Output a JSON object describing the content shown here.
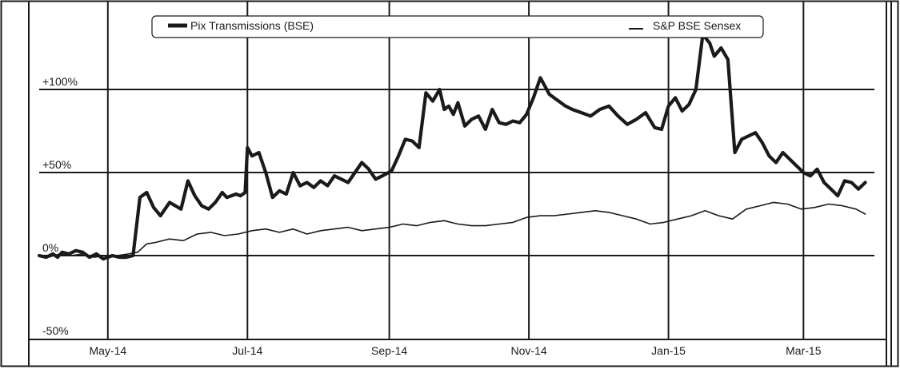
{
  "chart_data": {
    "type": "line",
    "title": "",
    "xlabel": "",
    "ylabel": "",
    "y_unit": "%",
    "ylim": [
      -50,
      135
    ],
    "xlim": [
      "2014-04-01",
      "2015-04-01"
    ],
    "grid": true,
    "legend_position": "top",
    "x_tick_labels": [
      "May-14",
      "Jul-14",
      "Sep-14",
      "Nov-14",
      "Jan-15",
      "Mar-15"
    ],
    "x_tick_dates": [
      "2014-05-01",
      "2014-07-01",
      "2014-09-01",
      "2014-11-01",
      "2015-01-01",
      "2015-03-01"
    ],
    "y_tick_labels": [
      "+100%",
      "+50%",
      "0%",
      "-50%"
    ],
    "y_tick_values": [
      100,
      50,
      0,
      -50
    ],
    "series": [
      {
        "name": "Pix Transmissions (BSE)",
        "color": "#1a1a1a",
        "line_style": "thick",
        "x": [
          "2014-04-01",
          "2014-04-04",
          "2014-04-07",
          "2014-04-09",
          "2014-04-11",
          "2014-04-14",
          "2014-04-17",
          "2014-04-20",
          "2014-04-23",
          "2014-04-26",
          "2014-04-29",
          "2014-05-03",
          "2014-05-06",
          "2014-05-09",
          "2014-05-12",
          "2014-05-15",
          "2014-05-18",
          "2014-05-21",
          "2014-05-24",
          "2014-05-28",
          "2014-06-02",
          "2014-06-05",
          "2014-06-08",
          "2014-06-11",
          "2014-06-14",
          "2014-06-17",
          "2014-06-20",
          "2014-06-22",
          "2014-06-24",
          "2014-06-26",
          "2014-06-28",
          "2014-06-30",
          "2014-07-01",
          "2014-07-03",
          "2014-07-06",
          "2014-07-09",
          "2014-07-12",
          "2014-07-15",
          "2014-07-18",
          "2014-07-21",
          "2014-07-24",
          "2014-07-27",
          "2014-07-30",
          "2014-08-02",
          "2014-08-05",
          "2014-08-08",
          "2014-08-11",
          "2014-08-14",
          "2014-08-17",
          "2014-08-20",
          "2014-08-23",
          "2014-08-26",
          "2014-08-29",
          "2014-09-02",
          "2014-09-05",
          "2014-09-08",
          "2014-09-11",
          "2014-09-14",
          "2014-09-17",
          "2014-09-20",
          "2014-09-23",
          "2014-09-25",
          "2014-09-27",
          "2014-09-29",
          "2014-10-01",
          "2014-10-04",
          "2014-10-07",
          "2014-10-10",
          "2014-10-13",
          "2014-10-16",
          "2014-10-19",
          "2014-10-22",
          "2014-10-25",
          "2014-10-28",
          "2014-10-31",
          "2014-11-03",
          "2014-11-06",
          "2014-11-10",
          "2014-11-14",
          "2014-11-17",
          "2014-11-20",
          "2014-11-24",
          "2014-11-28",
          "2014-12-02",
          "2014-12-06",
          "2014-12-10",
          "2014-12-14",
          "2014-12-18",
          "2014-12-22",
          "2014-12-26",
          "2014-12-29",
          "2015-01-01",
          "2015-01-04",
          "2015-01-07",
          "2015-01-10",
          "2015-01-13",
          "2015-01-16",
          "2015-01-19",
          "2015-01-21",
          "2015-01-24",
          "2015-01-27",
          "2015-01-30",
          "2015-02-02",
          "2015-02-05",
          "2015-02-08",
          "2015-02-11",
          "2015-02-14",
          "2015-02-17",
          "2015-02-20",
          "2015-02-23",
          "2015-02-26",
          "2015-03-01",
          "2015-03-04",
          "2015-03-07",
          "2015-03-10",
          "2015-03-13",
          "2015-03-16",
          "2015-03-19",
          "2015-03-22",
          "2015-03-25",
          "2015-03-28"
        ],
        "values": [
          0,
          -1,
          1,
          -1,
          2,
          1,
          3,
          2,
          -1,
          1,
          -2,
          0,
          -1,
          -1,
          0,
          35,
          38,
          29,
          24,
          32,
          28,
          45,
          36,
          30,
          28,
          32,
          38,
          35,
          36,
          37,
          36,
          38,
          65,
          60,
          62,
          50,
          35,
          39,
          37,
          50,
          42,
          44,
          41,
          45,
          42,
          48,
          46,
          44,
          50,
          56,
          52,
          46,
          48,
          51,
          60,
          70,
          69,
          65,
          98,
          93,
          100,
          88,
          90,
          85,
          92,
          78,
          82,
          84,
          76,
          88,
          80,
          79,
          81,
          80,
          85,
          95,
          107,
          97,
          93,
          90,
          88,
          86,
          84,
          88,
          90,
          84,
          79,
          82,
          86,
          77,
          76,
          90,
          95,
          87,
          91,
          100,
          133,
          128,
          120,
          125,
          118,
          62,
          70,
          72,
          74,
          68,
          60,
          56,
          62,
          58,
          54,
          50,
          48,
          52,
          44,
          40,
          36,
          45,
          44,
          40,
          44
        ]
      },
      {
        "name": "S&P BSE Sensex",
        "color": "#1a1a1a",
        "line_style": "thin",
        "x": [
          "2014-04-01",
          "2014-04-05",
          "2014-04-10",
          "2014-04-15",
          "2014-04-20",
          "2014-04-25",
          "2014-04-30",
          "2014-05-05",
          "2014-05-10",
          "2014-05-14",
          "2014-05-18",
          "2014-05-22",
          "2014-05-28",
          "2014-06-03",
          "2014-06-09",
          "2014-06-15",
          "2014-06-21",
          "2014-06-27",
          "2014-07-03",
          "2014-07-09",
          "2014-07-15",
          "2014-07-21",
          "2014-07-27",
          "2014-08-02",
          "2014-08-08",
          "2014-08-14",
          "2014-08-20",
          "2014-08-26",
          "2014-09-01",
          "2014-09-07",
          "2014-09-13",
          "2014-09-19",
          "2014-09-25",
          "2014-10-01",
          "2014-10-07",
          "2014-10-13",
          "2014-10-19",
          "2014-10-25",
          "2014-10-31",
          "2014-11-06",
          "2014-11-12",
          "2014-11-18",
          "2014-11-24",
          "2014-11-30",
          "2014-12-06",
          "2014-12-12",
          "2014-12-18",
          "2014-12-24",
          "2014-12-30",
          "2015-01-05",
          "2015-01-11",
          "2015-01-17",
          "2015-01-23",
          "2015-01-29",
          "2015-02-04",
          "2015-02-10",
          "2015-02-16",
          "2015-02-22",
          "2015-02-28",
          "2015-03-06",
          "2015-03-12",
          "2015-03-18",
          "2015-03-24",
          "2015-03-28"
        ],
        "values": [
          0,
          -1,
          1,
          0,
          1,
          -1,
          0,
          0,
          1,
          2,
          7,
          8,
          10,
          9,
          13,
          14,
          12,
          13,
          15,
          16,
          14,
          16,
          13,
          15,
          16,
          17,
          15,
          16,
          17,
          19,
          18,
          20,
          21,
          19,
          18,
          18,
          19,
          20,
          23,
          24,
          24,
          25,
          26,
          27,
          26,
          24,
          22,
          19,
          20,
          22,
          24,
          27,
          24,
          22,
          28,
          30,
          32,
          31,
          28,
          29,
          31,
          30,
          28,
          25
        ]
      }
    ]
  }
}
